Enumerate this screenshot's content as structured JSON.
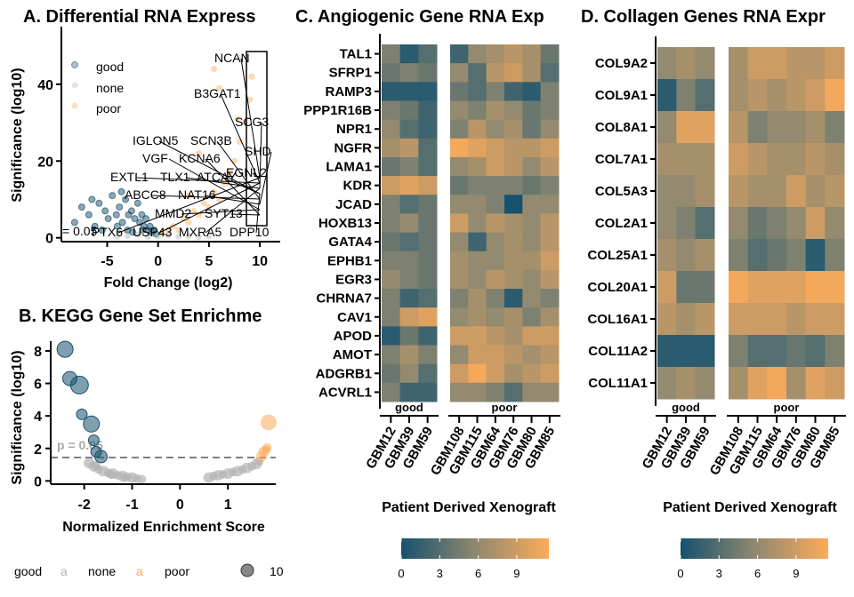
{
  "colors": {
    "good": "#16516e",
    "none": "#b3b3b3",
    "poor": "#fdab5a",
    "mid": "#8e8870"
  },
  "chart_data": [
    {
      "type": "scatter",
      "title": "A. Differential RNA Express",
      "xlabel": "Fold Change (log2)",
      "ylabel": "Significance (log10)",
      "xlim": [
        -9.5,
        12
      ],
      "ylim": [
        -1,
        55
      ],
      "xticks": [
        -5,
        0,
        5,
        10
      ],
      "yticks": [
        0,
        20,
        40
      ],
      "threshold_label": "= 0.05",
      "legend": {
        "position": "top-left",
        "entries": [
          "good",
          "none",
          "poor"
        ]
      },
      "series": [
        {
          "name": "good",
          "points": [
            [
              -8.2,
              4
            ],
            [
              -7.5,
              8
            ],
            [
              -6.8,
              6
            ],
            [
              -6.2,
              3
            ],
            [
              -5.8,
              9
            ],
            [
              -5.2,
              7
            ],
            [
              -4.9,
              5
            ],
            [
              -4.5,
              11
            ],
            [
              -4.1,
              6
            ],
            [
              -3.8,
              8
            ],
            [
              -3.5,
              4
            ],
            [
              -3.2,
              10
            ],
            [
              -2.9,
              6
            ],
            [
              -2.6,
              7
            ],
            [
              -2.3,
              5
            ],
            [
              -2,
              9
            ],
            [
              -1.8,
              4
            ],
            [
              -1.6,
              6
            ],
            [
              -1.4,
              3
            ],
            [
              -1.2,
              5
            ],
            [
              -1,
              2
            ],
            [
              -0.8,
              3
            ],
            [
              -0.6,
              1.5
            ],
            [
              -0.4,
              2
            ],
            [
              -0.2,
              1
            ],
            [
              -3,
              2
            ],
            [
              -4,
              3
            ],
            [
              -2.5,
              1.5
            ],
            [
              -1.5,
              2
            ],
            [
              -5.5,
              2
            ],
            [
              -6.5,
              10
            ],
            [
              -3.6,
              12
            ]
          ]
        },
        {
          "name": "none",
          "points": [
            [
              -3,
              0.5
            ],
            [
              -2,
              0.8
            ],
            [
              -1,
              0.3
            ],
            [
              0,
              0.4
            ],
            [
              1,
              0.6
            ],
            [
              2,
              0.3
            ],
            [
              3,
              0.5
            ],
            [
              4,
              0.2
            ],
            [
              -4,
              0.3
            ],
            [
              5,
              0.4
            ]
          ]
        },
        {
          "name": "poor",
          "points": [
            [
              0.5,
              1
            ],
            [
              1,
              2
            ],
            [
              1.5,
              3
            ],
            [
              2,
              2
            ],
            [
              2.5,
              5
            ],
            [
              3,
              4
            ],
            [
              3.5,
              7
            ],
            [
              4,
              6
            ],
            [
              4.5,
              9
            ],
            [
              5,
              8
            ],
            [
              5.5,
              12
            ],
            [
              6,
              10
            ],
            [
              6.5,
              14
            ],
            [
              7,
              17
            ],
            [
              7.5,
              20
            ],
            [
              8,
              25
            ],
            [
              8.5,
              30
            ],
            [
              9,
              36
            ],
            [
              7.8,
              31
            ],
            [
              6,
              39
            ],
            [
              5.5,
              44
            ],
            [
              4,
              22
            ],
            [
              3,
              11
            ],
            [
              9.2,
              42
            ]
          ]
        }
      ],
      "labeled_genes": [
        "NCAN",
        "B3GAT1",
        "SCG3",
        "IGLON5",
        "SCN3B",
        "SHD",
        "VGF",
        "KCNA6",
        "EGNL2",
        "EXTL1",
        "TLX1",
        "ATCAY",
        "ABCC8",
        "NAT16",
        "MMD2",
        "SYT13",
        "PTX6",
        "USP43",
        "MXRA5",
        "DPP10"
      ]
    },
    {
      "type": "scatter",
      "title": "B. KEGG Gene Set Enrichme",
      "xlabel": "Normalized Enrichment Score",
      "ylabel": "Significance (log10)",
      "xlim": [
        -2.7,
        2
      ],
      "ylim": [
        -0.2,
        8.6
      ],
      "xticks": [
        -2,
        -1,
        0,
        1
      ],
      "yticks": [
        0,
        2,
        4,
        6,
        8
      ],
      "threshold": 1.3,
      "threshold_label": "p = 0.05",
      "legend": {
        "position": "bottom",
        "entries": [
          "good",
          "none",
          "poor"
        ],
        "size_label": "10"
      },
      "series": [
        {
          "name": "good",
          "points": [
            [
              -2.4,
              8.1,
              9
            ],
            [
              -2.3,
              6.3,
              8
            ],
            [
              -2.1,
              5.9,
              10
            ],
            [
              -2.05,
              4.1,
              6
            ],
            [
              -1.85,
              3.5,
              9
            ],
            [
              -1.8,
              2.5,
              6
            ],
            [
              -1.75,
              1.8,
              6
            ],
            [
              -1.65,
              1.5,
              7
            ]
          ]
        },
        {
          "name": "none",
          "points": [
            [
              -1.9,
              1.1,
              6
            ],
            [
              -1.8,
              0.9,
              6
            ],
            [
              -1.7,
              0.7,
              5
            ],
            [
              -1.6,
              0.6,
              6
            ],
            [
              -1.5,
              0.5,
              5
            ],
            [
              -1.4,
              0.45,
              6
            ],
            [
              -1.3,
              0.35,
              5
            ],
            [
              -1.2,
              0.3,
              6
            ],
            [
              -1.1,
              0.25,
              5
            ],
            [
              -1,
              0.2,
              6
            ],
            [
              -0.9,
              0.15,
              5
            ],
            [
              -0.8,
              0.1,
              5
            ],
            [
              -1.75,
              0.9,
              5
            ],
            [
              -1.45,
              0.4,
              5
            ],
            [
              -1.15,
              0.2,
              5
            ],
            [
              0.6,
              0.2,
              6
            ],
            [
              0.7,
              0.3,
              5
            ],
            [
              0.8,
              0.35,
              6
            ],
            [
              0.9,
              0.4,
              5
            ],
            [
              1,
              0.45,
              6
            ],
            [
              1.1,
              0.55,
              5
            ],
            [
              1.2,
              0.6,
              6
            ],
            [
              1.3,
              0.7,
              5
            ],
            [
              1.4,
              0.8,
              6
            ],
            [
              1.5,
              0.9,
              5
            ],
            [
              1.6,
              1.05,
              6
            ],
            [
              1.65,
              1.2,
              5
            ]
          ]
        },
        {
          "name": "poor",
          "points": [
            [
              1.7,
              1.5,
              6
            ],
            [
              1.75,
              1.8,
              6
            ],
            [
              1.8,
              1.9,
              5
            ],
            [
              1.82,
              2.05,
              5
            ],
            [
              1.85,
              3.6,
              9
            ]
          ]
        }
      ]
    },
    {
      "type": "heatmap",
      "title": "C. Angiogenic Gene RNA Exp",
      "xlabel": "Patient Derived Xenograft",
      "groups": [
        {
          "name": "good",
          "columns": [
            "GBM12",
            "GBM39",
            "GBM59"
          ]
        },
        {
          "name": "poor",
          "columns": [
            "GBM108",
            "GBM115",
            "GBM64",
            "GBM76",
            "GBM80",
            "GBM85"
          ]
        }
      ],
      "rows": [
        "TAL1",
        "SFRP1",
        "RAMP3",
        "PPP1R16B",
        "NPR1",
        "NGFR",
        "LAMA1",
        "KDR",
        "JCAD",
        "HOXB13",
        "GATA4",
        "EPHB1",
        "EGR3",
        "CHRNA7",
        "CAV1",
        "APOD",
        "AMOT",
        "ADGRB1",
        "ACVRL1"
      ],
      "values": [
        [
          5,
          1,
          3,
          2,
          6,
          7,
          8,
          7,
          4
        ],
        [
          4,
          5,
          4,
          6,
          3,
          8,
          9,
          7,
          3
        ],
        [
          1,
          1,
          1,
          4,
          3,
          5,
          2,
          1,
          5
        ],
        [
          5,
          4,
          2,
          6,
          5,
          7,
          6,
          4,
          5
        ],
        [
          6,
          3,
          2,
          5,
          8,
          6,
          7,
          4,
          6
        ],
        [
          7,
          8,
          3,
          11,
          10,
          9,
          8,
          8,
          9
        ],
        [
          4,
          5,
          3,
          6,
          7,
          9,
          8,
          6,
          8
        ],
        [
          9,
          10,
          9,
          4,
          5,
          5,
          5,
          4,
          5
        ],
        [
          5,
          3,
          4,
          6,
          6,
          5,
          0,
          6,
          6
        ],
        [
          5,
          6,
          4,
          9,
          6,
          8,
          7,
          6,
          8
        ],
        [
          4,
          3,
          4,
          6,
          2,
          6,
          7,
          6,
          8
        ],
        [
          5,
          5,
          4,
          7,
          6,
          6,
          7,
          7,
          9
        ],
        [
          6,
          5,
          4,
          7,
          6,
          8,
          7,
          6,
          8
        ],
        [
          5,
          2,
          3,
          5,
          7,
          5,
          1,
          6,
          5
        ],
        [
          5,
          9,
          10,
          6,
          7,
          6,
          7,
          5,
          7
        ],
        [
          1,
          4,
          2,
          9,
          9,
          8,
          7,
          9,
          9
        ],
        [
          5,
          7,
          5,
          6,
          9,
          9,
          8,
          7,
          8
        ],
        [
          4,
          6,
          3,
          9,
          11,
          9,
          7,
          8,
          9
        ],
        [
          5,
          2,
          2,
          6,
          6,
          5,
          3,
          6,
          6
        ]
      ],
      "colorbar": {
        "ticks": [
          0,
          3,
          6,
          9
        ],
        "range": [
          0,
          11.5
        ]
      }
    },
    {
      "type": "heatmap",
      "title": "D. Collagen Genes RNA Expr",
      "xlabel": "Patient Derived Xenograft",
      "groups": [
        {
          "name": "good",
          "columns": [
            "GBM12",
            "GBM39",
            "GBM59"
          ]
        },
        {
          "name": "poor",
          "columns": [
            "GBM108",
            "GBM115",
            "GBM64",
            "GBM76",
            "GBM80",
            "GBM85"
          ]
        }
      ],
      "rows": [
        "COL9A2",
        "COL9A1",
        "COL8A1",
        "COL7A1",
        "COL5A3",
        "COL2A1",
        "COL25A1",
        "COL20A1",
        "COL16A1",
        "COL11A2",
        "COL11A1"
      ],
      "values": [
        [
          6,
          7,
          6,
          7,
          9,
          9,
          8,
          8,
          9
        ],
        [
          1,
          5,
          3,
          7,
          8,
          7,
          8,
          9,
          11
        ],
        [
          6,
          10,
          10,
          8,
          5,
          6,
          6,
          7,
          5
        ],
        [
          7,
          7,
          7,
          9,
          8,
          7,
          7,
          8,
          7
        ],
        [
          6,
          6,
          7,
          8,
          7,
          7,
          9,
          7,
          8
        ],
        [
          6,
          5,
          3,
          6,
          4,
          5,
          6,
          9,
          6
        ],
        [
          7,
          6,
          7,
          5,
          3,
          4,
          5,
          1,
          5
        ],
        [
          9,
          4,
          4,
          11,
          10,
          10,
          10,
          11,
          11
        ],
        [
          8,
          7,
          8,
          9,
          9,
          9,
          8,
          9,
          9
        ],
        [
          1,
          1,
          1,
          5,
          3,
          3,
          4,
          3,
          5
        ],
        [
          6,
          7,
          6,
          7,
          10,
          11,
          7,
          10,
          9
        ]
      ],
      "colorbar": {
        "ticks": [
          0,
          3,
          6,
          9
        ],
        "range": [
          0,
          11.5
        ]
      }
    }
  ]
}
